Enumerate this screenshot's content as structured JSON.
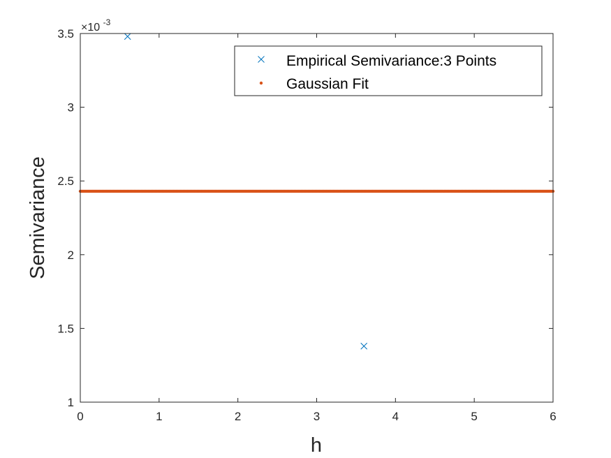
{
  "chart_data": {
    "type": "scatter",
    "xlabel": "h",
    "ylabel": "Semivariance",
    "xlim": [
      0,
      6
    ],
    "ylim": [
      0.001,
      0.0035
    ],
    "x_ticks": [
      0,
      1,
      2,
      3,
      4,
      5,
      6
    ],
    "x_tick_labels": [
      "0",
      "1",
      "2",
      "3",
      "4",
      "5",
      "6"
    ],
    "y_ticks": [
      0.001,
      0.0015,
      0.002,
      0.0025,
      0.003,
      0.0035
    ],
    "y_tick_labels": [
      "1",
      "1.5",
      "2",
      "2.5",
      "3",
      "3.5"
    ],
    "y_exponent": {
      "base": "×10",
      "power": "-3"
    },
    "grid": false,
    "legend_position": "top-right",
    "series": [
      {
        "name": "Empirical Semivariance:3 Points",
        "marker": "x",
        "color": "#0072BD",
        "x": [
          0.6,
          3.6
        ],
        "y": [
          0.00348,
          0.00138
        ]
      },
      {
        "name": "Gaussian Fit",
        "marker": "dot",
        "color": "#D95319",
        "x_range": [
          0,
          6
        ],
        "y_value": 0.00243
      }
    ]
  }
}
